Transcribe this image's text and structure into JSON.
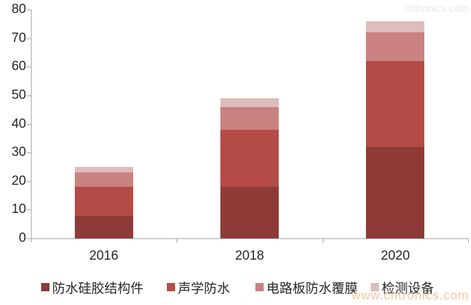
{
  "watermark_top_text": "cntronics.com",
  "watermark_bottom_text": "www.cntronics.com",
  "chart_data": {
    "type": "bar",
    "stacked": true,
    "title": "",
    "xlabel": "",
    "ylabel": "",
    "categories": [
      "2016",
      "2018",
      "2020"
    ],
    "series": [
      {
        "name": "防水硅胶结构件",
        "color": "#8E3B38",
        "values": [
          8,
          18,
          32
        ]
      },
      {
        "name": "声学防水",
        "color": "#B44B47",
        "values": [
          10,
          20,
          30
        ]
      },
      {
        "name": "电路板防水覆膜",
        "color": "#C98280",
        "values": [
          5,
          8,
          10
        ]
      },
      {
        "name": "检测设备",
        "color": "#DDBCBD",
        "values": [
          2,
          3,
          4
        ]
      }
    ],
    "stack_totals": [
      25,
      49,
      76
    ],
    "ylim": [
      0,
      80
    ],
    "ytick_step": 10,
    "y_ticks": [
      "0",
      "10",
      "20",
      "30",
      "40",
      "50",
      "60",
      "70",
      "80"
    ],
    "grid": false,
    "legend_position": "bottom",
    "axis_color": "#A6A6A6",
    "label_color": "#262626",
    "watermark_color": "#F2BE92"
  }
}
